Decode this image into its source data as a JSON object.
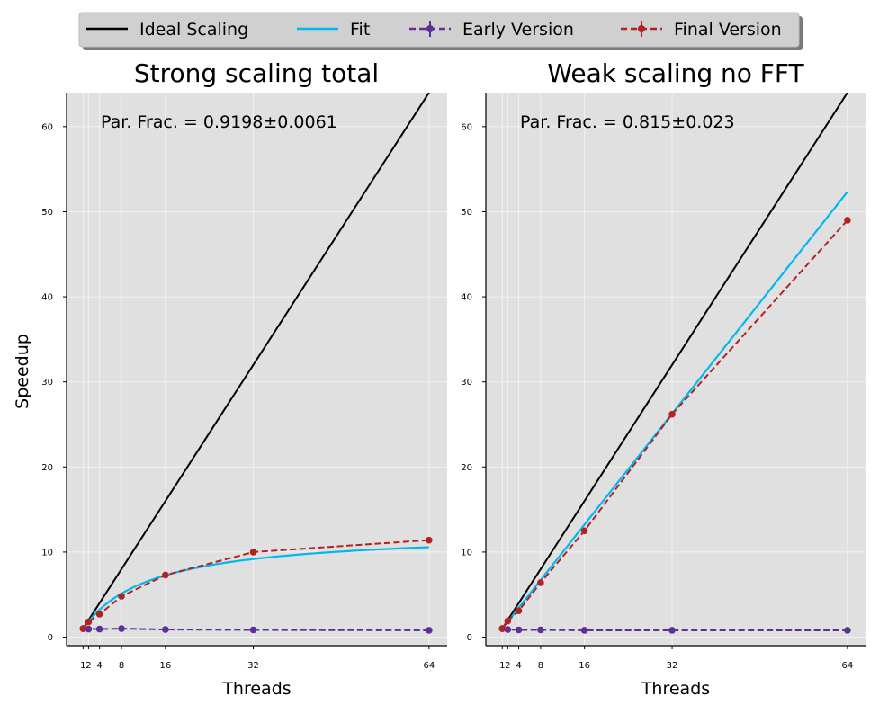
{
  "legend": {
    "items": [
      {
        "label": "Ideal Scaling",
        "color": "#000000",
        "style": "solid",
        "marker": false
      },
      {
        "label": "Fit",
        "color": "#00b8f0",
        "style": "solid",
        "marker": false
      },
      {
        "label": "Early Version",
        "color": "#5e2f94",
        "style": "dashed",
        "marker": true
      },
      {
        "label": "Final Version",
        "color": "#b22222",
        "style": "dashed",
        "marker": true
      }
    ]
  },
  "chart_data": [
    {
      "type": "line",
      "title": "Strong scaling total",
      "xlabel": "Threads",
      "ylabel": "Speedup",
      "annotation": "Par. Frac. = 0.9198±0.0061",
      "xticks": [
        1,
        2,
        4,
        8,
        16,
        32,
        64
      ],
      "xtick_labels": [
        "1",
        "2",
        "4",
        "8",
        "16",
        "32",
        "64"
      ],
      "yticks": [
        0,
        10,
        20,
        30,
        40,
        50,
        60
      ],
      "ytick_labels": [
        "0",
        "10",
        "20",
        "30",
        "40",
        "50",
        "60"
      ],
      "xlim": [
        -2.0,
        67.3
      ],
      "ylim": [
        -1.0,
        64.0
      ],
      "grid": true,
      "background": "#e0e0e0",
      "parallel_fraction": 0.9198,
      "series": [
        {
          "name": "Ideal Scaling",
          "kind": "ideal",
          "color": "#000000",
          "x": [
            1,
            64
          ],
          "y": [
            1,
            64
          ]
        },
        {
          "name": "Fit",
          "kind": "amdahl",
          "color": "#00b8f0",
          "p": 0.9198,
          "x_range": [
            1,
            64
          ]
        },
        {
          "name": "Early Version",
          "kind": "data",
          "color": "#5e2f94",
          "x": [
            1,
            2,
            4,
            8,
            16,
            32,
            64
          ],
          "y": [
            1.0,
            0.95,
            0.95,
            1.0,
            0.9,
            0.85,
            0.8
          ]
        },
        {
          "name": "Final Version",
          "kind": "data",
          "color": "#b22222",
          "x": [
            1,
            2,
            4,
            8,
            16,
            32,
            64
          ],
          "y": [
            1.0,
            1.8,
            2.7,
            4.8,
            7.3,
            10.0,
            11.4
          ]
        }
      ]
    },
    {
      "type": "line",
      "title": "Weak scaling no FFT",
      "xlabel": "Threads",
      "ylabel": "",
      "annotation": "Par. Frac. = 0.815±0.023",
      "xticks": [
        1,
        2,
        4,
        8,
        16,
        32,
        64
      ],
      "xtick_labels": [
        "1",
        "2",
        "4",
        "8",
        "16",
        "32",
        "64"
      ],
      "yticks": [
        0,
        10,
        20,
        30,
        40,
        50,
        60
      ],
      "ytick_labels": [
        "0",
        "10",
        "20",
        "30",
        "40",
        "50",
        "60"
      ],
      "xlim": [
        -2.0,
        67.3
      ],
      "ylim": [
        -1.0,
        64.0
      ],
      "grid": true,
      "background": "#e0e0e0",
      "parallel_fraction": 0.815,
      "series": [
        {
          "name": "Ideal Scaling",
          "kind": "ideal",
          "color": "#000000",
          "x": [
            1,
            64
          ],
          "y": [
            1,
            64
          ]
        },
        {
          "name": "Fit",
          "kind": "gustafson",
          "color": "#00b8f0",
          "p": 0.815,
          "x_range": [
            1,
            64
          ]
        },
        {
          "name": "Early Version",
          "kind": "data",
          "color": "#5e2f94",
          "x": [
            1,
            2,
            4,
            8,
            16,
            32,
            64
          ],
          "y": [
            1.0,
            0.9,
            0.85,
            0.85,
            0.8,
            0.8,
            0.8
          ]
        },
        {
          "name": "Final Version",
          "kind": "data",
          "color": "#b22222",
          "x": [
            1,
            2,
            4,
            8,
            16,
            32,
            64
          ],
          "y": [
            1.0,
            1.9,
            3.1,
            6.4,
            12.5,
            26.2,
            49.0
          ]
        }
      ]
    }
  ]
}
